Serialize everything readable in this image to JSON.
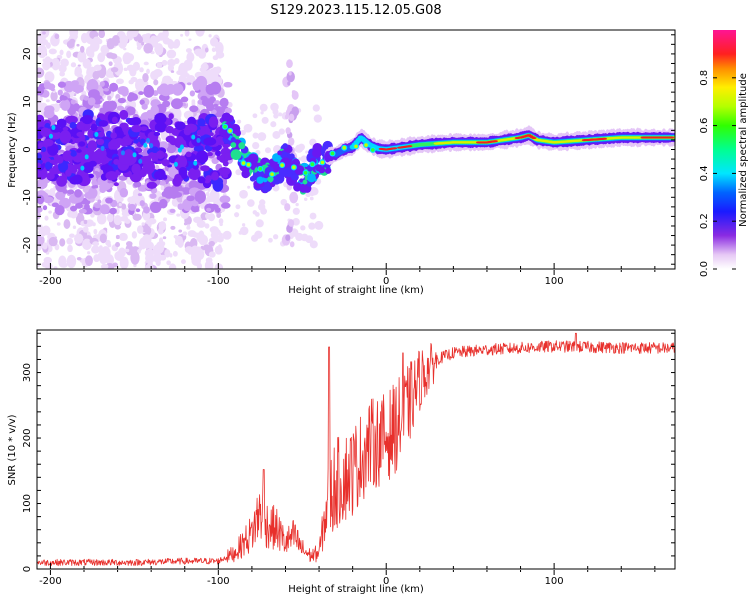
{
  "figure": {
    "title": "S129.2023.115.12.05.G08"
  },
  "chart_data": [
    {
      "type": "heatmap",
      "xlabel": "Height of straight line (km)",
      "ylabel": "Frequency (Hz)",
      "xlim": [
        -208,
        172
      ],
      "ylim": [
        -25,
        25
      ],
      "x_ticks": [
        -200,
        -100,
        0,
        100
      ],
      "y_ticks": [
        -20,
        -10,
        0,
        10,
        20
      ],
      "colorbar": {
        "label": "Normalized spectral amplitude",
        "range": [
          0,
          1
        ],
        "ticks": [
          "0.0",
          "0.2",
          "0.4",
          "0.6",
          "0.8"
        ],
        "colormap": "gist_ncar-like (white-purple-blue-cyan-green-yellow-red-pink)"
      },
      "ridge": [
        {
          "x": -100,
          "f": 4.0
        },
        {
          "x": -95,
          "f": 5.0
        },
        {
          "x": -90,
          "f": 2.0
        },
        {
          "x": -85,
          "f": -2.0
        },
        {
          "x": -80,
          "f": -4.0
        },
        {
          "x": -75,
          "f": -5.0
        },
        {
          "x": -70,
          "f": -6.0
        },
        {
          "x": -65,
          "f": -4.0
        },
        {
          "x": -60,
          "f": -2.0
        },
        {
          "x": -55,
          "f": -4.0
        },
        {
          "x": -50,
          "f": -7.0
        },
        {
          "x": -45,
          "f": -4.0
        },
        {
          "x": -40,
          "f": -2.0
        },
        {
          "x": -30,
          "f": -1.0
        },
        {
          "x": -25,
          "f": 0.0
        },
        {
          "x": -20,
          "f": 0.5
        },
        {
          "x": -15,
          "f": 2.5
        },
        {
          "x": -10,
          "f": 1.0
        },
        {
          "x": -5,
          "f": 0.2
        },
        {
          "x": 0,
          "f": 0.0
        },
        {
          "x": 10,
          "f": 0.5
        },
        {
          "x": 20,
          "f": 1.0
        },
        {
          "x": 40,
          "f": 1.5
        },
        {
          "x": 60,
          "f": 1.5
        },
        {
          "x": 80,
          "f": 2.5
        },
        {
          "x": 85,
          "f": 3.0
        },
        {
          "x": 90,
          "f": 2.0
        },
        {
          "x": 100,
          "f": 1.5
        },
        {
          "x": 120,
          "f": 2.0
        },
        {
          "x": 140,
          "f": 2.5
        },
        {
          "x": 160,
          "f": 2.5
        },
        {
          "x": 172,
          "f": 2.5
        }
      ]
    },
    {
      "type": "line",
      "xlabel": "Height of straight line (km)",
      "ylabel": "SNR (10 * v/v)",
      "xlim": [
        -208,
        172
      ],
      "ylim": [
        0,
        365
      ],
      "x_ticks": [
        -200,
        -100,
        0,
        100
      ],
      "y_ticks": [
        0,
        100,
        200,
        300
      ],
      "color": "#e8302c",
      "envelope": [
        {
          "x": -208,
          "snr": 10
        },
        {
          "x": -150,
          "snr": 10
        },
        {
          "x": -120,
          "snr": 12
        },
        {
          "x": -100,
          "snr": 12
        },
        {
          "x": -90,
          "snr": 25
        },
        {
          "x": -80,
          "snr": 55
        },
        {
          "x": -75,
          "snr": 90
        },
        {
          "x": -72,
          "snr": 70
        },
        {
          "x": -65,
          "snr": 60
        },
        {
          "x": -60,
          "snr": 40
        },
        {
          "x": -55,
          "snr": 50
        },
        {
          "x": -50,
          "snr": 30
        },
        {
          "x": -45,
          "snr": 20
        },
        {
          "x": -40,
          "snr": 25
        },
        {
          "x": -35,
          "snr": 100
        },
        {
          "x": -30,
          "snr": 130
        },
        {
          "x": -20,
          "snr": 150
        },
        {
          "x": -10,
          "snr": 190
        },
        {
          "x": 0,
          "snr": 200
        },
        {
          "x": 10,
          "snr": 230
        },
        {
          "x": 20,
          "snr": 290
        },
        {
          "x": 30,
          "snr": 320
        },
        {
          "x": 40,
          "snr": 330
        },
        {
          "x": 60,
          "snr": 335
        },
        {
          "x": 100,
          "snr": 340
        },
        {
          "x": 140,
          "snr": 338
        },
        {
          "x": 172,
          "snr": 337
        }
      ],
      "spikes": [
        {
          "x": -73,
          "snr": 152
        },
        {
          "x": -34,
          "snr": 339
        },
        {
          "x": 10,
          "snr": 330
        },
        {
          "x": 113,
          "snr": 360
        }
      ]
    }
  ]
}
